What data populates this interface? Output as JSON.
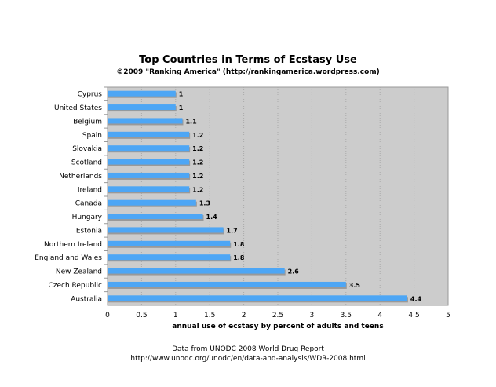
{
  "chart_data": {
    "type": "bar",
    "orientation": "horizontal",
    "title": "Top Countries in Terms of Ecstasy Use",
    "subtitle": "©2009 \"Ranking America\" (http://rankingamerica.wordpress.com)",
    "xlabel": "annual use of ecstasy by percent of adults and teens",
    "ylabel": "",
    "xlim": [
      0,
      5
    ],
    "xticks": [
      "0",
      "0.5",
      "1",
      "1.5",
      "2",
      "2.5",
      "3",
      "3.5",
      "4",
      "4.5",
      "5"
    ],
    "categories": [
      "Cyprus",
      "United States",
      "Belgium",
      "Spain",
      "Slovakia",
      "Scotland",
      "Netherlands",
      "Ireland",
      "Canada",
      "Hungary",
      "Estonia",
      "Northern Ireland",
      "England and Wales",
      "New Zealand",
      "Czech Republic",
      "Australia"
    ],
    "values": [
      1,
      1,
      1.1,
      1.2,
      1.2,
      1.2,
      1.2,
      1.2,
      1.3,
      1.4,
      1.7,
      1.8,
      1.8,
      2.6,
      3.5,
      4.4
    ],
    "data_labels": [
      "1",
      "1",
      "1.1",
      "1.2",
      "1.2",
      "1.2",
      "1.2",
      "1.2",
      "1.3",
      "1.4",
      "1.7",
      "1.8",
      "1.8",
      "2.6",
      "3.5",
      "4.4"
    ],
    "grid": true,
    "bar_color": "#4da6f5",
    "plot_background": "#cccccc",
    "footnote": [
      "Data from UNODC 2008 World Drug Report",
      "http://www.unodc.org/unodc/en/data-and-analysis/WDR-2008.html"
    ]
  }
}
